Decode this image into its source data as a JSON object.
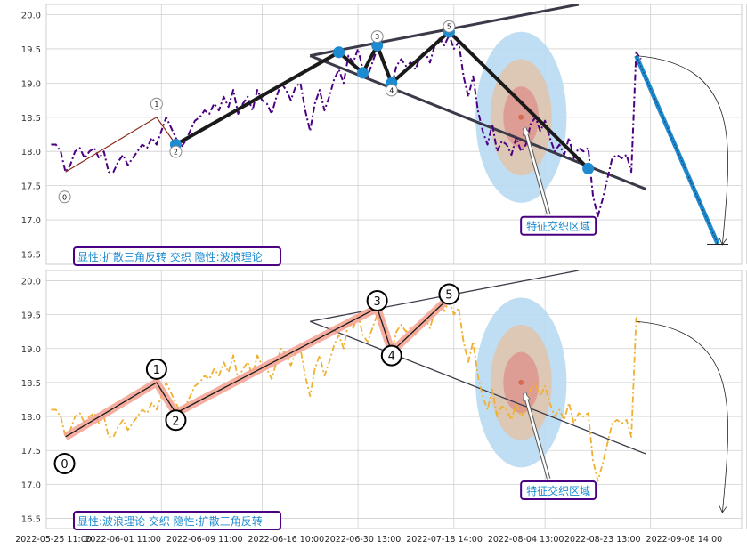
{
  "chart_data": [
    {
      "type": "line",
      "panel": "top",
      "ylim": [
        16.35,
        20.15
      ],
      "yticks": [
        16.5,
        17.0,
        17.5,
        18.0,
        18.5,
        19.0,
        19.5,
        20.0
      ],
      "ytick_labels": [
        "16.5",
        "17.0",
        "17.5",
        "18.0",
        "18.5",
        "19.0",
        "19.5",
        "20.0"
      ],
      "xtick_labels": [
        "2022-05-25 11:00",
        "2022-06-01 11:00",
        "2022-06-09 11:00",
        "2022-06-16 10:00",
        "2022-06-30 13:00",
        "2022-07-18 14:00",
        "2022-08-04 13:00",
        "2022-08-23 13:00",
        "2022-09-08 14:00"
      ],
      "grid": true,
      "colors": {
        "price": "#4b0082",
        "wave": "#1a1a1a",
        "marker": "#1e8bd0",
        "triangle": "#3a3a48",
        "forecast": "#1e8bd0",
        "label_border": "#4b0082",
        "label_text": "#1e8bd0"
      },
      "price_series": [
        [
          1,
          18.1
        ],
        [
          2,
          18.1
        ],
        [
          3,
          18.0
        ],
        [
          4,
          17.7
        ],
        [
          5,
          17.8
        ],
        [
          6,
          18.0
        ],
        [
          7,
          18.05
        ],
        [
          8,
          17.9
        ],
        [
          9,
          18.0
        ],
        [
          10,
          18.05
        ],
        [
          11,
          17.9
        ],
        [
          12,
          18.0
        ],
        [
          13,
          17.7
        ],
        [
          14,
          17.7
        ],
        [
          15,
          17.85
        ],
        [
          16,
          17.95
        ],
        [
          17,
          17.8
        ],
        [
          18,
          17.9
        ],
        [
          19,
          18.0
        ],
        [
          20,
          18.1
        ],
        [
          21,
          18.05
        ],
        [
          22,
          18.2
        ],
        [
          23,
          18.1
        ],
        [
          24,
          18.3
        ],
        [
          25,
          18.5
        ],
        [
          26,
          18.35
        ],
        [
          27,
          18.2
        ],
        [
          28,
          18.05
        ],
        [
          29,
          18.15
        ],
        [
          30,
          18.3
        ],
        [
          31,
          18.45
        ],
        [
          32,
          18.5
        ],
        [
          33,
          18.6
        ],
        [
          34,
          18.55
        ],
        [
          35,
          18.7
        ],
        [
          36,
          18.6
        ],
        [
          37,
          18.8
        ],
        [
          38,
          18.65
        ],
        [
          39,
          18.9
        ],
        [
          40,
          18.55
        ],
        [
          41,
          18.7
        ],
        [
          42,
          18.8
        ],
        [
          43,
          18.6
        ],
        [
          44,
          18.9
        ],
        [
          45,
          18.75
        ],
        [
          46,
          18.7
        ],
        [
          47,
          18.55
        ],
        [
          48,
          18.8
        ],
        [
          49,
          19.0
        ],
        [
          50,
          18.9
        ],
        [
          51,
          18.75
        ],
        [
          52,
          18.95
        ],
        [
          53,
          19.0
        ],
        [
          54,
          18.6
        ],
        [
          55,
          18.3
        ],
        [
          56,
          18.7
        ],
        [
          57,
          18.9
        ],
        [
          58,
          18.6
        ],
        [
          59,
          18.8
        ],
        [
          60,
          19.05
        ],
        [
          61,
          19.2
        ],
        [
          62,
          19.0
        ],
        [
          63,
          19.4
        ],
        [
          64,
          19.3
        ],
        [
          65,
          19.5
        ],
        [
          66,
          19.2
        ],
        [
          67,
          19.1
        ],
        [
          68,
          19.3
        ],
        [
          69,
          19.5
        ],
        [
          70,
          19.4
        ],
        [
          71,
          19.2
        ],
        [
          72,
          18.95
        ],
        [
          73,
          19.25
        ],
        [
          74,
          19.35
        ],
        [
          75,
          19.25
        ],
        [
          76,
          19.3
        ],
        [
          77,
          19.2
        ],
        [
          78,
          19.4
        ],
        [
          79,
          19.45
        ],
        [
          80,
          19.3
        ],
        [
          81,
          19.55
        ],
        [
          82,
          19.65
        ],
        [
          83,
          19.55
        ],
        [
          84,
          19.7
        ],
        [
          85,
          19.5
        ],
        [
          86,
          19.6
        ],
        [
          87,
          19.1
        ],
        [
          88,
          18.8
        ],
        [
          89,
          19.1
        ],
        [
          90,
          18.6
        ],
        [
          91,
          18.3
        ],
        [
          92,
          18.1
        ],
        [
          93,
          18.4
        ],
        [
          94,
          18.0
        ],
        [
          95,
          18.15
        ],
        [
          96,
          18.1
        ],
        [
          97,
          17.95
        ],
        [
          98,
          18.2
        ],
        [
          99,
          18.0
        ],
        [
          100,
          18.1
        ],
        [
          101,
          18.4
        ],
        [
          102,
          18.5
        ],
        [
          103,
          18.3
        ],
        [
          104,
          18.45
        ],
        [
          105,
          18.2
        ],
        [
          106,
          18.0
        ],
        [
          107,
          18.1
        ],
        [
          108,
          17.95
        ],
        [
          109,
          18.2
        ],
        [
          110,
          17.9
        ],
        [
          111,
          18.05
        ],
        [
          112,
          18.0
        ],
        [
          113,
          18.05
        ],
        [
          114,
          17.35
        ],
        [
          115,
          17.05
        ],
        [
          116,
          17.3
        ],
        [
          117,
          17.6
        ],
        [
          118,
          17.9
        ],
        [
          119,
          17.95
        ],
        [
          120,
          17.9
        ],
        [
          121,
          17.95
        ],
        [
          122,
          17.7
        ],
        [
          123,
          19.45
        ],
        [
          124,
          19.35
        ]
      ],
      "wave_points": [
        {
          "x": 4,
          "y": 17.7,
          "label": "0"
        },
        {
          "x": 23,
          "y": 18.5,
          "label": "1"
        },
        {
          "x": 27,
          "y": 18.1,
          "label": "2"
        },
        {
          "x": 61,
          "y": 19.45,
          "label": ""
        },
        {
          "x": 66,
          "y": 19.15,
          "label": ""
        },
        {
          "x": 69,
          "y": 19.55,
          "label": "3"
        },
        {
          "x": 72,
          "y": 19.0,
          "label": "4"
        },
        {
          "x": 84,
          "y": 19.75,
          "label": "5"
        },
        {
          "x": 113,
          "y": 17.75,
          "label": ""
        }
      ],
      "triangle_lines": [
        {
          "from": [
            55,
            19.4
          ],
          "to": [
            111,
            20.15
          ]
        },
        {
          "from": [
            55,
            19.4
          ],
          "to": [
            125,
            17.45
          ]
        }
      ],
      "forecast_line": {
        "from": [
          123,
          19.4
        ],
        "to": [
          140,
          16.65
        ]
      },
      "forecast_arc": {
        "from": [
          123,
          19.4
        ],
        "to": [
          141,
          16.65
        ]
      },
      "target_zone": {
        "center": [
          99,
          18.5
        ],
        "rx": [
          9.5,
          6.4,
          3.7
        ],
        "ry": [
          1.25,
          0.85,
          0.45
        ]
      },
      "annotation": {
        "text": "特征交织区域",
        "xy": [
          99,
          18.45
        ],
        "xytext": [
          104,
          16.9
        ]
      },
      "label": "显性:扩散三角反转 交织 隐性:波浪理论"
    },
    {
      "type": "line",
      "panel": "bottom",
      "ylim": [
        16.35,
        20.15
      ],
      "yticks": [
        16.5,
        17.0,
        17.5,
        18.0,
        18.5,
        19.0,
        19.5,
        20.0
      ],
      "ytick_labels": [
        "16.5",
        "17.0",
        "17.5",
        "18.0",
        "18.5",
        "19.0",
        "19.5",
        "20.0"
      ],
      "xtick_labels": [
        "2022-05-25 11:00",
        "2022-06-01 11:00",
        "2022-06-09 11:00",
        "2022-06-16 10:00",
        "2022-06-30 13:00",
        "2022-07-18 14:00",
        "2022-08-04 13:00",
        "2022-08-23 13:00",
        "2022-09-08 14:00"
      ],
      "grid": true,
      "colors": {
        "price": "#f0b030",
        "wave": "#1a1a1a",
        "wave_glow": "#f4a090",
        "triangle": "#3a3a48",
        "label_border": "#4b0082",
        "label_text": "#1e8bd0"
      },
      "price_series": [
        [
          1,
          18.1
        ],
        [
          2,
          18.1
        ],
        [
          3,
          18.0
        ],
        [
          4,
          17.7
        ],
        [
          5,
          17.8
        ],
        [
          6,
          18.0
        ],
        [
          7,
          18.05
        ],
        [
          8,
          17.9
        ],
        [
          9,
          18.0
        ],
        [
          10,
          18.05
        ],
        [
          11,
          17.9
        ],
        [
          12,
          18.0
        ],
        [
          13,
          17.7
        ],
        [
          14,
          17.7
        ],
        [
          15,
          17.85
        ],
        [
          16,
          17.95
        ],
        [
          17,
          17.8
        ],
        [
          18,
          17.9
        ],
        [
          19,
          18.0
        ],
        [
          20,
          18.1
        ],
        [
          21,
          18.05
        ],
        [
          22,
          18.2
        ],
        [
          23,
          18.1
        ],
        [
          24,
          18.3
        ],
        [
          25,
          18.5
        ],
        [
          26,
          18.35
        ],
        [
          27,
          18.2
        ],
        [
          28,
          18.05
        ],
        [
          29,
          18.15
        ],
        [
          30,
          18.3
        ],
        [
          31,
          18.45
        ],
        [
          32,
          18.5
        ],
        [
          33,
          18.6
        ],
        [
          34,
          18.55
        ],
        [
          35,
          18.7
        ],
        [
          36,
          18.6
        ],
        [
          37,
          18.8
        ],
        [
          38,
          18.65
        ],
        [
          39,
          18.9
        ],
        [
          40,
          18.55
        ],
        [
          41,
          18.7
        ],
        [
          42,
          18.8
        ],
        [
          43,
          18.6
        ],
        [
          44,
          18.9
        ],
        [
          45,
          18.75
        ],
        [
          46,
          18.7
        ],
        [
          47,
          18.55
        ],
        [
          48,
          18.8
        ],
        [
          49,
          19.0
        ],
        [
          50,
          18.9
        ],
        [
          51,
          18.75
        ],
        [
          52,
          18.95
        ],
        [
          53,
          19.0
        ],
        [
          54,
          18.6
        ],
        [
          55,
          18.3
        ],
        [
          56,
          18.7
        ],
        [
          57,
          18.9
        ],
        [
          58,
          18.6
        ],
        [
          59,
          18.8
        ],
        [
          60,
          19.05
        ],
        [
          61,
          19.2
        ],
        [
          62,
          19.0
        ],
        [
          63,
          19.4
        ],
        [
          64,
          19.3
        ],
        [
          65,
          19.5
        ],
        [
          66,
          19.2
        ],
        [
          67,
          19.1
        ],
        [
          68,
          19.3
        ],
        [
          69,
          19.5
        ],
        [
          70,
          19.4
        ],
        [
          71,
          19.2
        ],
        [
          72,
          18.95
        ],
        [
          73,
          19.25
        ],
        [
          74,
          19.35
        ],
        [
          75,
          19.25
        ],
        [
          76,
          19.3
        ],
        [
          77,
          19.2
        ],
        [
          78,
          19.4
        ],
        [
          79,
          19.45
        ],
        [
          80,
          19.3
        ],
        [
          81,
          19.55
        ],
        [
          82,
          19.65
        ],
        [
          83,
          19.55
        ],
        [
          84,
          19.7
        ],
        [
          85,
          19.5
        ],
        [
          86,
          19.6
        ],
        [
          87,
          19.1
        ],
        [
          88,
          18.8
        ],
        [
          89,
          19.1
        ],
        [
          90,
          18.6
        ],
        [
          91,
          18.3
        ],
        [
          92,
          18.1
        ],
        [
          93,
          18.4
        ],
        [
          94,
          18.0
        ],
        [
          95,
          18.15
        ],
        [
          96,
          18.1
        ],
        [
          97,
          17.95
        ],
        [
          98,
          18.2
        ],
        [
          99,
          18.0
        ],
        [
          100,
          18.1
        ],
        [
          101,
          18.4
        ],
        [
          102,
          18.5
        ],
        [
          103,
          18.3
        ],
        [
          104,
          18.45
        ],
        [
          105,
          18.2
        ],
        [
          106,
          18.0
        ],
        [
          107,
          18.1
        ],
        [
          108,
          17.95
        ],
        [
          109,
          18.2
        ],
        [
          110,
          17.9
        ],
        [
          111,
          18.05
        ],
        [
          112,
          18.0
        ],
        [
          113,
          18.05
        ],
        [
          114,
          17.35
        ],
        [
          115,
          17.05
        ],
        [
          116,
          17.3
        ],
        [
          117,
          17.6
        ],
        [
          118,
          17.9
        ],
        [
          119,
          17.95
        ],
        [
          120,
          17.9
        ],
        [
          121,
          17.95
        ],
        [
          122,
          17.7
        ],
        [
          123,
          19.45
        ],
        [
          124,
          19.35
        ]
      ],
      "wave_points": [
        {
          "x": 4,
          "y": 17.7,
          "label": "0"
        },
        {
          "x": 23,
          "y": 18.5,
          "label": "1"
        },
        {
          "x": 27,
          "y": 18.05,
          "label": "2"
        },
        {
          "x": 69,
          "y": 19.6,
          "label": "3"
        },
        {
          "x": 72,
          "y": 18.95,
          "label": "4"
        },
        {
          "x": 84,
          "y": 19.75,
          "label": "5"
        }
      ],
      "triangle_lines": [
        {
          "from": [
            55,
            19.4
          ],
          "to": [
            111,
            20.15
          ]
        },
        {
          "from": [
            55,
            19.4
          ],
          "to": [
            125,
            17.45
          ]
        }
      ],
      "forecast_arc": {
        "from": [
          123,
          19.4
        ],
        "to": [
          141,
          16.6
        ]
      },
      "target_zone": {
        "center": [
          99,
          18.5
        ],
        "rx": [
          9.5,
          6.4,
          3.7
        ],
        "ry": [
          1.25,
          0.85,
          0.45
        ]
      },
      "annotation": {
        "text": "特征交织区域",
        "xy": [
          99,
          18.45
        ],
        "xytext": [
          104,
          16.9
        ]
      },
      "label": "显性:波浪理论 交织 隐性:扩散三角反转"
    }
  ]
}
